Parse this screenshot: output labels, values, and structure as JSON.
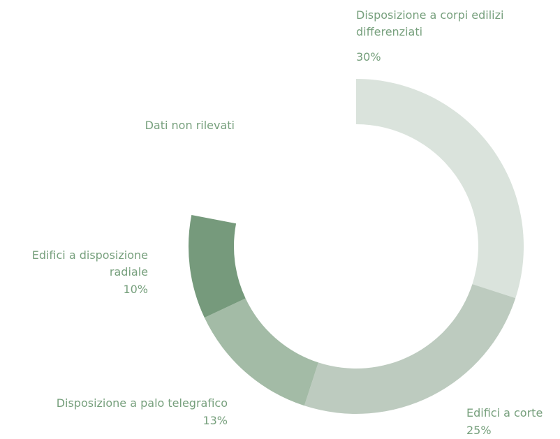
{
  "chart_data": {
    "type": "donut",
    "categories": [
      "Disposizione a corpi edilizi differenziati",
      "Edifici a corte",
      "Disposizione a palo telegrafico",
      "Edifici a disposizione radiale",
      "Dati non rilevati"
    ],
    "values": [
      30,
      25,
      13,
      10,
      22
    ],
    "value_labels": [
      "30%",
      "25%",
      "13%",
      "10%",
      null
    ],
    "colors": [
      "#dae3dc",
      "#bdcbbf",
      "#a3bba6",
      "#769a7c",
      "none"
    ]
  }
}
